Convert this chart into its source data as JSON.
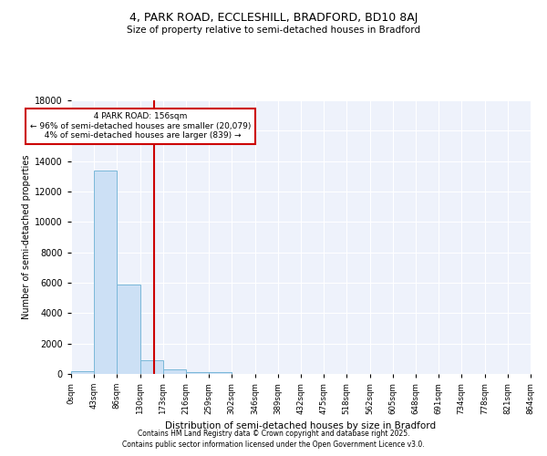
{
  "title1": "4, PARK ROAD, ECCLESHILL, BRADFORD, BD10 8AJ",
  "title2": "Size of property relative to semi-detached houses in Bradford",
  "xlabel": "Distribution of semi-detached houses by size in Bradford",
  "ylabel": "Number of semi-detached properties",
  "bin_edges": [
    0,
    43,
    86,
    130,
    173,
    216,
    259,
    302,
    346,
    389,
    432,
    475,
    518,
    562,
    605,
    648,
    691,
    734,
    778,
    821,
    864
  ],
  "bar_heights": [
    200,
    13400,
    5900,
    900,
    300,
    150,
    100,
    30,
    15,
    8,
    5,
    3,
    2,
    1,
    1,
    0,
    0,
    0,
    0,
    0
  ],
  "bar_color": "#cce0f5",
  "bar_edge_color": "#7ab8d9",
  "property_size": 156,
  "property_label": "4 PARK ROAD: 156sqm",
  "pct_smaller": 96,
  "n_smaller": 20079,
  "pct_larger": 4,
  "n_larger": 839,
  "vline_color": "#cc0000",
  "ylim": [
    0,
    18000
  ],
  "yticks": [
    0,
    2000,
    4000,
    6000,
    8000,
    10000,
    12000,
    14000,
    16000,
    18000
  ],
  "xtick_labels": [
    "0sqm",
    "43sqm",
    "86sqm",
    "130sqm",
    "173sqm",
    "216sqm",
    "259sqm",
    "302sqm",
    "346sqm",
    "389sqm",
    "432sqm",
    "475sqm",
    "518sqm",
    "562sqm",
    "605sqm",
    "648sqm",
    "691sqm",
    "734sqm",
    "778sqm",
    "821sqm",
    "864sqm"
  ],
  "annotation_box_color": "#cc0000",
  "bg_color": "#eef2fb",
  "footer1": "Contains HM Land Registry data © Crown copyright and database right 2025.",
  "footer2": "Contains public sector information licensed under the Open Government Licence v3.0."
}
